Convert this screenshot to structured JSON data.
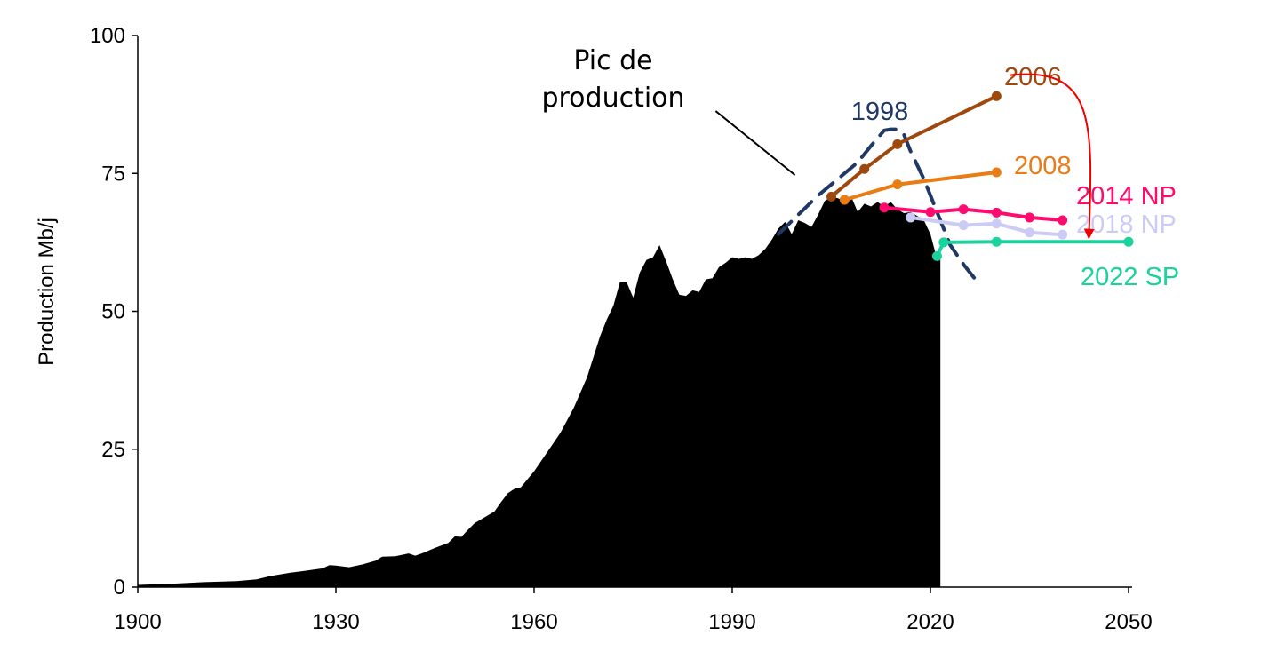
{
  "chart_data": {
    "type": "area",
    "xlim": [
      1900,
      2050
    ],
    "ylim": [
      0,
      100
    ],
    "x_ticks": [
      "1900",
      "1930",
      "1960",
      "1990",
      "2020",
      "2050"
    ],
    "y_ticks": [
      "0",
      "25",
      "50",
      "75",
      "100"
    ],
    "ylabel": "Production Mb/j",
    "xlabel": "",
    "title": "",
    "grid": false,
    "historical": {
      "color": "#000000",
      "points": [
        [
          1900,
          0.4
        ],
        [
          1905,
          0.6
        ],
        [
          1910,
          0.9
        ],
        [
          1915,
          1.1
        ],
        [
          1918,
          1.4
        ],
        [
          1920,
          2.0
        ],
        [
          1923,
          2.6
        ],
        [
          1925,
          2.9
        ],
        [
          1928,
          3.4
        ],
        [
          1929,
          4.0
        ],
        [
          1930,
          3.9
        ],
        [
          1932,
          3.6
        ],
        [
          1934,
          4.1
        ],
        [
          1936,
          4.8
        ],
        [
          1937,
          5.5
        ],
        [
          1939,
          5.6
        ],
        [
          1941,
          6.1
        ],
        [
          1942,
          5.7
        ],
        [
          1943,
          6.1
        ],
        [
          1945,
          7.1
        ],
        [
          1947,
          8.0
        ],
        [
          1948,
          9.2
        ],
        [
          1949,
          9.1
        ],
        [
          1950,
          10.4
        ],
        [
          1951,
          11.6
        ],
        [
          1953,
          13.0
        ],
        [
          1954,
          13.7
        ],
        [
          1955,
          15.4
        ],
        [
          1956,
          17.0
        ],
        [
          1957,
          17.8
        ],
        [
          1958,
          18.1
        ],
        [
          1960,
          21.0
        ],
        [
          1962,
          24.5
        ],
        [
          1964,
          28.0
        ],
        [
          1966,
          32.5
        ],
        [
          1968,
          38.0
        ],
        [
          1970,
          45.5
        ],
        [
          1971,
          48.5
        ],
        [
          1972,
          51.0
        ],
        [
          1973,
          55.3
        ],
        [
          1974,
          55.3
        ],
        [
          1975,
          52.5
        ],
        [
          1976,
          57.0
        ],
        [
          1977,
          59.3
        ],
        [
          1978,
          59.8
        ],
        [
          1979,
          62.0
        ],
        [
          1980,
          59.0
        ],
        [
          1981,
          55.8
        ],
        [
          1982,
          53.0
        ],
        [
          1983,
          52.8
        ],
        [
          1984,
          53.8
        ],
        [
          1985,
          53.5
        ],
        [
          1986,
          55.8
        ],
        [
          1987,
          56.0
        ],
        [
          1988,
          58.0
        ],
        [
          1989,
          58.8
        ],
        [
          1990,
          59.8
        ],
        [
          1991,
          59.5
        ],
        [
          1992,
          59.8
        ],
        [
          1993,
          59.5
        ],
        [
          1994,
          60.2
        ],
        [
          1995,
          61.3
        ],
        [
          1996,
          63.0
        ],
        [
          1997,
          65.0
        ],
        [
          1998,
          66.2
        ],
        [
          1999,
          64.0
        ],
        [
          2000,
          66.5
        ],
        [
          2001,
          66.0
        ],
        [
          2002,
          65.3
        ],
        [
          2003,
          67.5
        ],
        [
          2004,
          70.0
        ],
        [
          2005,
          70.8
        ],
        [
          2006,
          70.5
        ],
        [
          2007,
          70.0
        ],
        [
          2008,
          70.8
        ],
        [
          2009,
          68.0
        ],
        [
          2010,
          69.5
        ],
        [
          2011,
          69.0
        ],
        [
          2012,
          69.8
        ],
        [
          2013,
          69.0
        ],
        [
          2014,
          69.8
        ],
        [
          2015,
          68.5
        ],
        [
          2016,
          67.8
        ],
        [
          2017,
          68.0
        ],
        [
          2018,
          67.3
        ],
        [
          2019,
          66.5
        ],
        [
          2020,
          64.0
        ],
        [
          2021,
          59.5
        ],
        [
          2021.5,
          60.3
        ]
      ]
    },
    "series": [
      {
        "name": "1998",
        "color": "#1f3864",
        "style": "dashed",
        "markers": false,
        "points": [
          [
            1997,
            64.0
          ],
          [
            2000,
            67.5
          ],
          [
            2003,
            71.0
          ],
          [
            2006,
            74.0
          ],
          [
            2009,
            77.0
          ],
          [
            2011,
            80.0
          ],
          [
            2013,
            82.8
          ],
          [
            2014,
            83.0
          ],
          [
            2015,
            83.0
          ],
          [
            2016,
            82.0
          ],
          [
            2017,
            79.0
          ],
          [
            2019,
            74.0
          ],
          [
            2021,
            68.0
          ],
          [
            2023,
            62.0
          ],
          [
            2025,
            58.5
          ],
          [
            2027,
            55.5
          ]
        ]
      },
      {
        "name": "2006",
        "color": "#9e480e",
        "style": "solid",
        "markers": true,
        "points": [
          [
            2005,
            70.8
          ],
          [
            2010,
            75.8
          ],
          [
            2015,
            80.3
          ],
          [
            2030,
            89.0
          ]
        ]
      },
      {
        "name": "2008",
        "color": "#e97c14",
        "style": "solid",
        "markers": true,
        "points": [
          [
            2007,
            70.2
          ],
          [
            2015,
            73.0
          ],
          [
            2030,
            75.2
          ]
        ]
      },
      {
        "name": "2014 NP",
        "color": "#ff0a6e",
        "style": "solid",
        "markers": true,
        "points": [
          [
            2013,
            68.8
          ],
          [
            2020,
            68.0
          ],
          [
            2025,
            68.5
          ],
          [
            2030,
            67.9
          ],
          [
            2035,
            67.0
          ],
          [
            2040,
            66.5
          ]
        ]
      },
      {
        "name": "2018 NP",
        "color": "#cccbf6",
        "style": "solid",
        "markers": true,
        "points": [
          [
            2017,
            67.0
          ],
          [
            2025,
            65.6
          ],
          [
            2030,
            65.9
          ],
          [
            2035,
            64.3
          ],
          [
            2040,
            63.9
          ]
        ]
      },
      {
        "name": "2022 SP",
        "color": "#19d39c",
        "style": "solid",
        "markers": true,
        "points": [
          [
            2021,
            60.0
          ],
          [
            2022,
            62.5
          ],
          [
            2030,
            62.6
          ],
          [
            2050,
            62.6
          ]
        ]
      }
    ],
    "annotation": {
      "lines": [
        "Pic de",
        "production"
      ],
      "pointer_from": [
        1987.5,
        86.3
      ],
      "pointer_to": [
        1999.5,
        74.7
      ]
    },
    "trend_arrow": {
      "color": "#ee0000",
      "from": [
        2032,
        92.8
      ],
      "to": [
        2044,
        63.8
      ]
    }
  }
}
